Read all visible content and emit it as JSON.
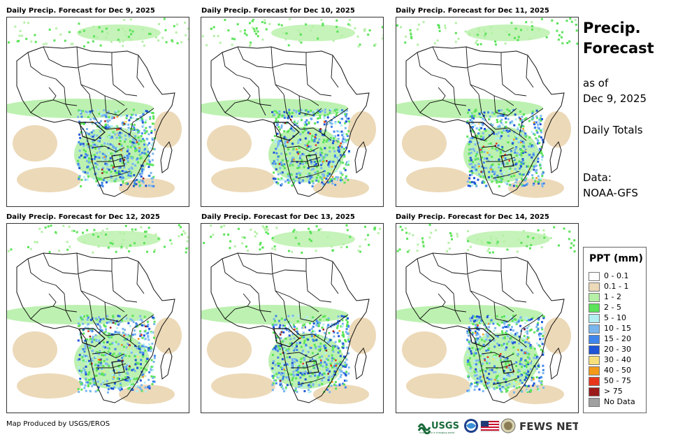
{
  "panels": [
    {
      "title": "Daily Precip. Forecast for Dec 9, 2025"
    },
    {
      "title": "Daily Precip. Forecast for Dec 10, 2025"
    },
    {
      "title": "Daily Precip. Forecast for Dec 11, 2025"
    },
    {
      "title": "Daily Precip. Forecast for Dec 12, 2025"
    },
    {
      "title": "Daily Precip. Forecast for Dec 13, 2025"
    },
    {
      "title": "Daily Precip. Forecast for Dec 14, 2025"
    }
  ],
  "side": {
    "title_line1": "Precip.",
    "title_line2": "Forecast",
    "asof_line1": "as of",
    "asof_line2": "Dec 9, 2025",
    "totals": "Daily Totals",
    "data_line1": "Data:",
    "data_line2": "NOAA-GFS"
  },
  "legend": {
    "title": "PPT (mm)",
    "items": [
      {
        "label": "0 - 0.1",
        "color": "#ffffff"
      },
      {
        "label": "0.1 - 1",
        "color": "#ecd9b8"
      },
      {
        "label": "1 - 2",
        "color": "#b6f0a8"
      },
      {
        "label": "2 - 5",
        "color": "#5be35a"
      },
      {
        "label": "5 - 10",
        "color": "#b3eef0"
      },
      {
        "label": "10 - 15",
        "color": "#79b6ee"
      },
      {
        "label": "15 - 20",
        "color": "#3f86ec"
      },
      {
        "label": "20 - 30",
        "color": "#1f55d6"
      },
      {
        "label": "30 - 40",
        "color": "#f7e07a"
      },
      {
        "label": "40 - 50",
        "color": "#f39a1a"
      },
      {
        "label": "50 - 75",
        "color": "#e8361b"
      },
      {
        "label": "> 75",
        "color": "#9b1b1b"
      },
      {
        "label": "No Data",
        "color": "#a0a0a0"
      }
    ]
  },
  "footer": {
    "credit": "Map Produced by USGS/EROS",
    "logo_usgs": "USGS",
    "logo_usgs_tagline": "science for a changing world",
    "logo_fews": "FEWS NET"
  }
}
